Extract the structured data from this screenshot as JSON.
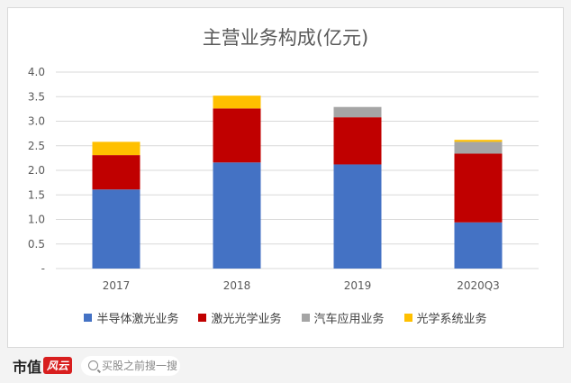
{
  "chart_data": {
    "type": "bar",
    "stacked": true,
    "title": "主营业务构成(亿元)",
    "categories": [
      "2017",
      "2018",
      "2019",
      "2020Q3"
    ],
    "ylim": [
      0,
      4.0
    ],
    "yticks": [
      "-",
      "0.5",
      "1.0",
      "1.5",
      "2.0",
      "2.5",
      "3.0",
      "3.5",
      "4.0"
    ],
    "grid": true,
    "legend_position": "bottom",
    "series": [
      {
        "name": "半导体激光业务",
        "color": "#4472c4",
        "values": [
          1.61,
          2.16,
          2.12,
          0.94
        ]
      },
      {
        "name": "激光光学业务",
        "color": "#c00000",
        "values": [
          0.7,
          1.1,
          0.96,
          1.4
        ]
      },
      {
        "name": "汽车应用业务",
        "color": "#a5a5a5",
        "values": [
          0.0,
          0.0,
          0.21,
          0.24
        ]
      },
      {
        "name": "光学系统业务",
        "color": "#ffc000",
        "values": [
          0.27,
          0.26,
          0.0,
          0.04
        ]
      }
    ]
  },
  "footer": {
    "logo_text": "市值",
    "logo_badge": "风云",
    "search_placeholder": "买股之前搜一搜"
  }
}
